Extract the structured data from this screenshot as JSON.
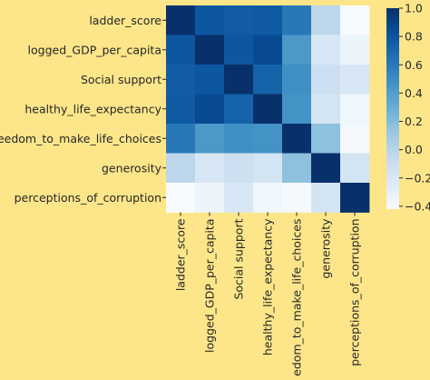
{
  "chart_data": {
    "type": "heatmap",
    "title": "",
    "variables": [
      "ladder_score",
      "logged_GDP_per_capita",
      "Social support",
      "healthy_life_expectancy",
      "freedom_to_make_life_choices",
      "generosity",
      "perceptions_of_corruption"
    ],
    "matrix": [
      [
        1.0,
        0.79,
        0.76,
        0.77,
        0.61,
        -0.02,
        -0.42
      ],
      [
        0.79,
        1.0,
        0.79,
        0.86,
        0.43,
        -0.2,
        -0.34
      ],
      [
        0.76,
        0.79,
        1.0,
        0.72,
        0.48,
        -0.12,
        -0.2
      ],
      [
        0.77,
        0.86,
        0.72,
        1.0,
        0.46,
        -0.16,
        -0.36
      ],
      [
        0.61,
        0.43,
        0.48,
        0.46,
        1.0,
        0.17,
        -0.4
      ],
      [
        -0.02,
        -0.2,
        -0.12,
        -0.16,
        0.17,
        1.0,
        -0.16
      ],
      [
        -0.42,
        -0.34,
        -0.2,
        -0.36,
        -0.4,
        -0.16,
        1.0
      ]
    ],
    "colorbar": {
      "colormap": "Blues",
      "vmin": -0.42,
      "vmax": 1.0,
      "ticks": [
        1.0,
        0.8,
        0.6,
        0.4,
        0.2,
        0.0,
        -0.2,
        -0.4
      ],
      "tick_labels": [
        "1.0",
        "0.8",
        "0.6",
        "0.4",
        "0.2",
        "0.0",
        "−0.2",
        "−0.4"
      ]
    },
    "background_color": "#fde68a"
  }
}
